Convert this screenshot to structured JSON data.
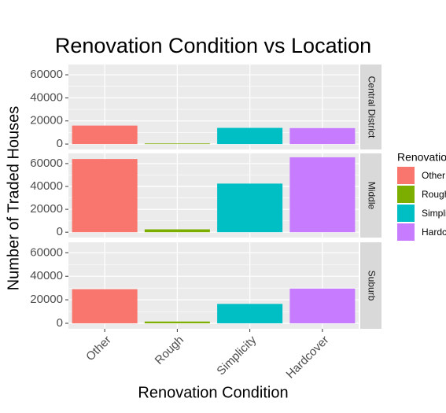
{
  "chart_data": {
    "type": "bar",
    "title": "Renovation Condition vs Location",
    "xlabel": "Renovation Condition",
    "ylabel": "Number of Traded Houses",
    "legend_title": "Renovation Condition",
    "legend": "right",
    "categories": [
      "Other",
      "Rough",
      "Simplicity",
      "Hardcover"
    ],
    "colors": [
      "#F8766D",
      "#7CAE00",
      "#00BFC4",
      "#C77CFF"
    ],
    "facets": [
      {
        "name": "Central District",
        "values": [
          16000,
          500,
          14000,
          13800
        ]
      },
      {
        "name": "Middle",
        "values": [
          64000,
          2500,
          42500,
          65500
        ]
      },
      {
        "name": "Suburb",
        "values": [
          29000,
          1500,
          16500,
          29500
        ]
      }
    ],
    "ylim": [
      -4700,
      68900
    ],
    "yticks": [
      0,
      20000,
      40000,
      60000
    ],
    "grid": true
  }
}
